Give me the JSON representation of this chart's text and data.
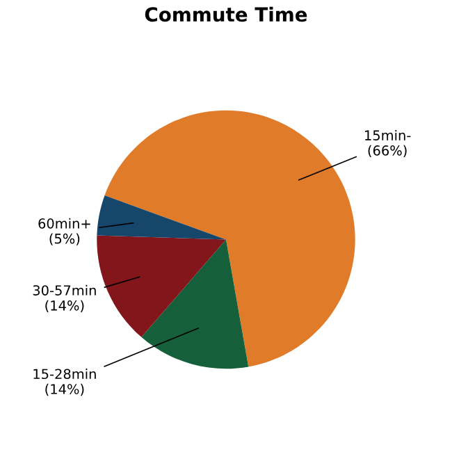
{
  "chart_data": {
    "type": "pie",
    "title": "Commute Time",
    "categories": [
      "15min-",
      "15-28min",
      "30-57min",
      "60min+"
    ],
    "values": [
      66,
      14,
      14,
      5
    ],
    "value_labels": [
      "(66%)",
      "(14%)",
      "(14%)",
      "(5%)"
    ],
    "colors": [
      "#e07b2a",
      "#15603a",
      "#82161b",
      "#17466b"
    ]
  }
}
